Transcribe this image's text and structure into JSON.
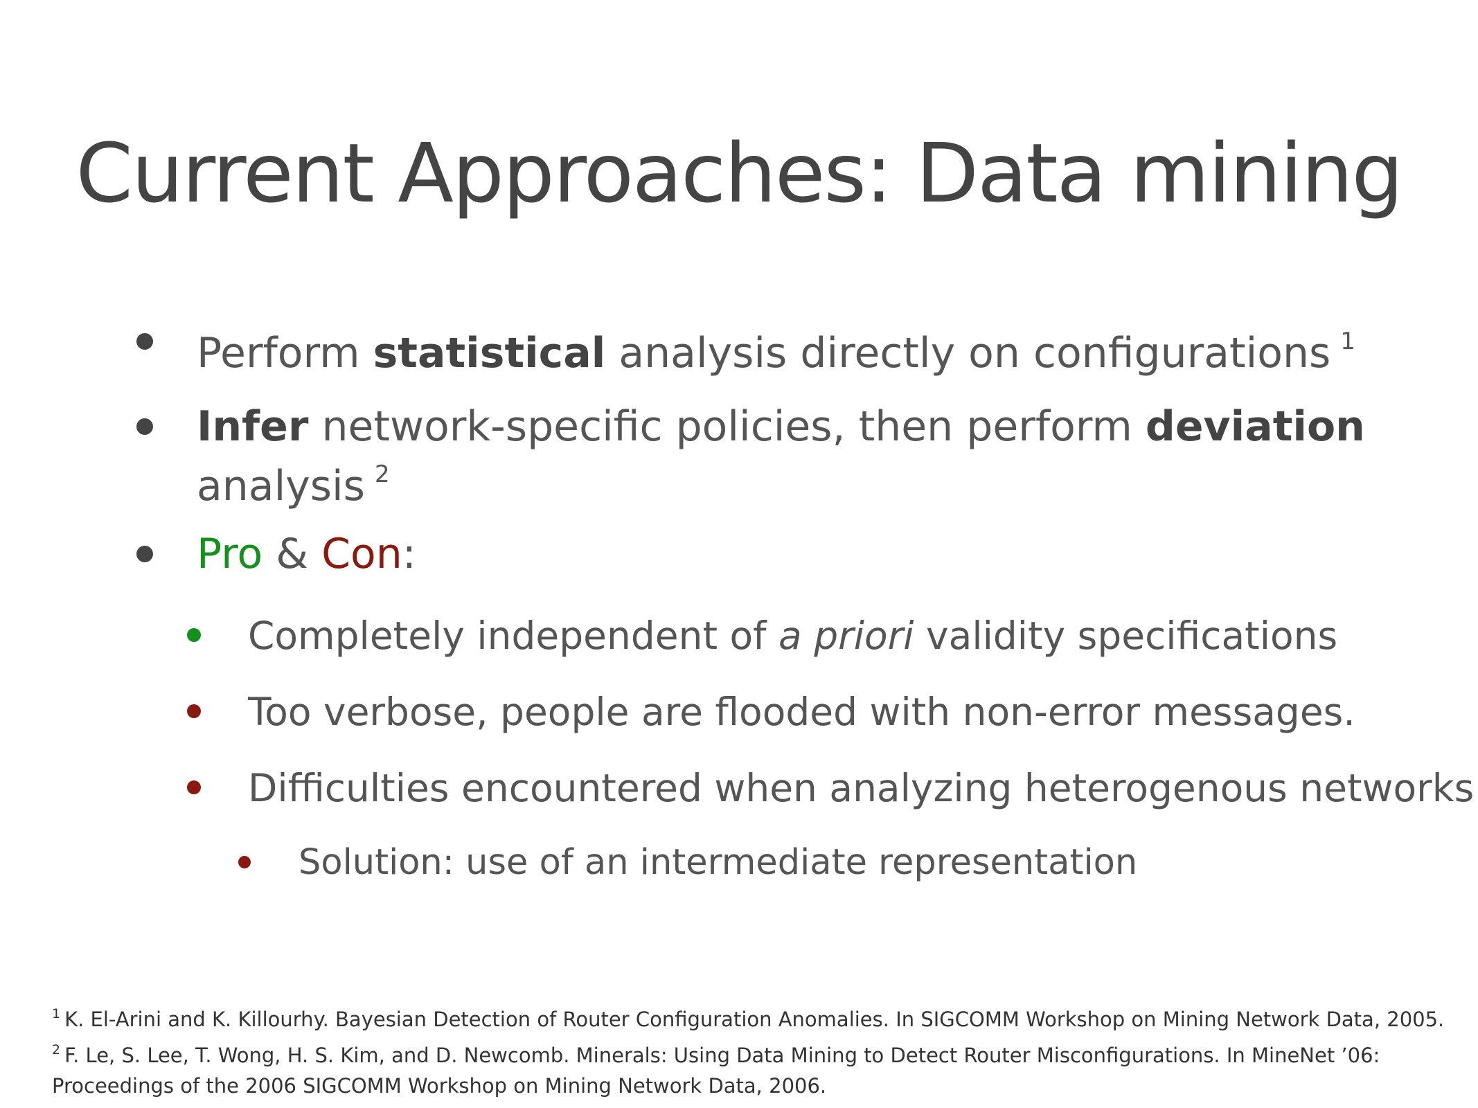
{
  "title": "Current Approaches: Data mining",
  "bullets": {
    "b1": {
      "pre": "Perform ",
      "bold": "statistical",
      "post": " analysis directly on configurations",
      "ref": "1"
    },
    "b2": {
      "bold1": "Infer",
      "mid": " network-specific policies, then perform ",
      "bold2": "deviation",
      "line2": "analysis",
      "ref": "2"
    },
    "b3": {
      "pro": "Pro",
      "amp": " & ",
      "con": "Con",
      "colon": ":"
    },
    "sub": {
      "s1_pre": "Completely independent of ",
      "s1_italic": "a priori",
      "s1_post": " validity specifications",
      "s2": "Too verbose, people are flooded with non-error messages.",
      "s3": "Difficulties encountered when analyzing heterogenous networks",
      "s4": "Solution: use of an intermediate representation"
    }
  },
  "footnotes": {
    "f1_num": "1",
    "f1": "K. El-Arini and K. Killourhy. Bayesian Detection of Router Configuration Anomalies. In SIGCOMM Workshop on Mining Network Data, 2005.",
    "f2_num": "2",
    "f2_line1": "F. Le, S. Lee, T. Wong, H. S. Kim, and D. Newcomb. Minerals: Using Data Mining to Detect Router Misconfigurations. In MineNet ’06:",
    "f2_line2": "Proceedings of the 2006 SIGCOMM Workshop on Mining Network Data, 2006."
  },
  "colors": {
    "pro_green": "#14901c",
    "con_red": "#8a1a10",
    "text_gray": "#555555",
    "bullet_dark": "#444444"
  }
}
